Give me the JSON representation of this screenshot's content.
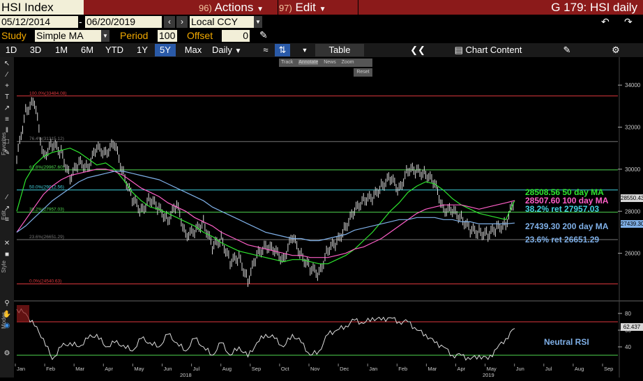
{
  "titlebar": {
    "ticker": "HSI Index",
    "actions_num": "96)",
    "actions_label": "Actions",
    "edit_num": "97)",
    "edit_label": "Edit",
    "page_title": "G 179: HSI daily"
  },
  "range": {
    "start_date": "05/12/2014",
    "end_date": "06/20/2019",
    "currency": "Local CCY"
  },
  "study": {
    "study_label": "Study",
    "study_value": "Simple MA",
    "period_label": "Period",
    "period_value": "100",
    "offset_label": "Offset",
    "offset_value": "0"
  },
  "tabs": {
    "periods": [
      "1D",
      "3D",
      "1M",
      "6M",
      "YTD",
      "1Y",
      "5Y",
      "Max"
    ],
    "active_period": "5Y",
    "frequency": "Daily",
    "table_label": "Table",
    "chart_content_label": "Chart Content"
  },
  "mini_toolbar": {
    "track": "Track",
    "annotate": "Annotate",
    "news": "News",
    "zoom": "Zoom",
    "reset": "Reset"
  },
  "side_labels": {
    "favorites": "Favorites",
    "edit": "Edit",
    "style": "Style",
    "modes": "Modes"
  },
  "colors": {
    "ma50": "#2ee62e",
    "ma100": "#ff5fc8",
    "ma200": "#7fb0e8",
    "price": "#d8d8d8",
    "fib_red": "#e0393e",
    "fib_green": "#4fd64f",
    "fib_cyan": "#43d3e0",
    "fib_gray": "#777777",
    "rsi": "#dddddd"
  },
  "chart_data": {
    "type": "line",
    "title": "HSI daily",
    "x_month_labels": [
      "Jan",
      "Feb",
      "Mar",
      "Apr",
      "May",
      "Jun",
      "Jul",
      "Aug",
      "Sep",
      "Oct",
      "Nov",
      "Dec",
      "Jan",
      "Feb",
      "Mar",
      "Apr",
      "May",
      "Jun",
      "Jul",
      "Aug",
      "Sep"
    ],
    "year_labels": [
      "2018",
      "2019"
    ],
    "y_ticks": [
      26000,
      28000,
      30000,
      32000,
      34000
    ],
    "ylim": [
      24000,
      35000
    ],
    "rsi_ticks": [
      40,
      60,
      80
    ],
    "rsi_ylim": [
      20,
      90
    ],
    "last_price": "28550.43",
    "last_ma200": "27439.30",
    "last_rsi": "62.437",
    "fib_levels": [
      {
        "label": "100.0%(33484.08)",
        "value": 33484.08
      },
      {
        "label": "76.4%(31315.12)",
        "value": 31315.12
      },
      {
        "label": "61.8%(29967.60)",
        "value": 29967.6
      },
      {
        "label": "50.0%(29012.56)",
        "value": 29012.56
      },
      {
        "label": "38.2%(27957.03)",
        "value": 27957.03
      },
      {
        "label": "23.6%(26651.29)",
        "value": 26651.29
      },
      {
        "label": "0.0%(24540.63)",
        "value": 24540.63
      }
    ],
    "annotations": {
      "ma50": "28508.56  50 day MA",
      "ma100": "28507.60 100 day MA",
      "ret382": "38.2% ret 27957.03",
      "ma200": "27439.30 200 day MA",
      "ret236": "23.6% ret 26651.29",
      "rsi": "Neutral RSI"
    },
    "series": [
      {
        "name": "HSI",
        "values": [
          30500,
          32800,
          33200,
          30600,
          31200,
          30800,
          29600,
          30300,
          30100,
          31000,
          30800,
          31200,
          29800,
          28600,
          28000,
          28600,
          28100,
          27600,
          28300,
          26900,
          27000,
          27500,
          26300,
          26700,
          25600,
          25800,
          24700,
          25900,
          26400,
          26100,
          25700,
          26800,
          25900,
          25300,
          25000,
          26200,
          26500,
          27300,
          28000,
          28600,
          28600,
          29200,
          29600,
          29000,
          30000,
          29900,
          29800,
          29300,
          28100,
          28000,
          27700,
          27100,
          27000,
          26900,
          27200,
          27400,
          28550
        ]
      },
      {
        "name": "50 day MA",
        "values": [
          28000,
          29500,
          30200,
          30600,
          30800,
          30900,
          31000,
          30800,
          30500,
          30200,
          30300,
          30000,
          29500,
          28900,
          28500,
          28200,
          28100,
          27900,
          27700,
          27500,
          27300,
          27000,
          26800,
          26500,
          26300,
          26100,
          26000,
          25900,
          25800,
          25700,
          25600,
          25700,
          25700,
          25600,
          25500,
          25500,
          25700,
          25900,
          26200,
          26600,
          27000,
          27500,
          28000,
          28400,
          28900,
          29200,
          29400,
          29300,
          29000,
          28600,
          28300,
          28100,
          27900,
          27800,
          27700,
          27600,
          28508
        ]
      },
      {
        "name": "100 day MA",
        "values": [
          27000,
          27600,
          28200,
          28800,
          29200,
          29500,
          29700,
          29800,
          29900,
          30000,
          30000,
          29900,
          29700,
          29400,
          29100,
          28900,
          28700,
          28400,
          28200,
          28000,
          27700,
          27500,
          27300,
          27000,
          26800,
          26600,
          26400,
          26300,
          26200,
          26100,
          26000,
          25900,
          25900,
          25800,
          25800,
          25800,
          25900,
          26000,
          26200,
          26300,
          26500,
          26700,
          27000,
          27300,
          27600,
          27900,
          28100,
          28200,
          28300,
          28300,
          28300,
          28200,
          28100,
          28200,
          28300,
          28400,
          28507
        ]
      },
      {
        "name": "200 day MA",
        "values": [
          27000,
          27300,
          27700,
          28100,
          28500,
          28800,
          29100,
          29400,
          29600,
          29700,
          29800,
          29900,
          29900,
          29800,
          29700,
          29600,
          29500,
          29300,
          29100,
          28900,
          28700,
          28500,
          28200,
          28000,
          27800,
          27600,
          27400,
          27200,
          27000,
          26900,
          26800,
          26700,
          26700,
          26600,
          26600,
          26700,
          26800,
          26900,
          27100,
          27200,
          27300,
          27400,
          27500,
          27600,
          27600,
          27700,
          27700,
          27700,
          27600,
          27600,
          27500,
          27500,
          27400,
          27400,
          27400,
          27400,
          27439
        ]
      }
    ],
    "rsi_values": [
      85,
      80,
      65,
      50,
      25,
      40,
      45,
      40,
      50,
      55,
      40,
      45,
      42,
      35,
      50,
      45,
      40,
      55,
      45,
      35,
      50,
      40,
      30,
      45,
      30,
      40,
      28,
      45,
      55,
      50,
      40,
      55,
      45,
      30,
      35,
      55,
      60,
      65,
      72,
      68,
      75,
      72,
      75,
      70,
      70,
      60,
      55,
      45,
      40,
      30,
      30,
      25,
      30,
      25,
      38,
      50,
      62
    ]
  }
}
